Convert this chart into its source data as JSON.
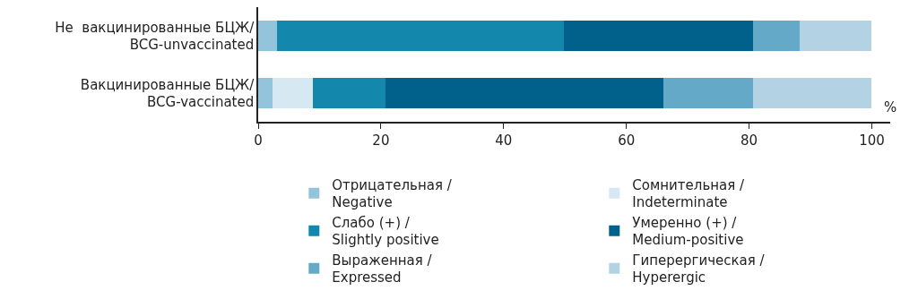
{
  "chart_data": {
    "type": "bar",
    "orientation": "horizontal",
    "stacked": true,
    "xlabel": "%",
    "categories": [
      "Не  вакцинированные БЦЖ/\nBCG-unvaccinated",
      "Вакцинированные БЦЖ/\nBCG-vaccinated"
    ],
    "series": [
      {
        "name": "Отрицательная /\nNegative",
        "color": "#93c4dc",
        "values": [
          3.0,
          2.3
        ]
      },
      {
        "name": "Сомнительная /\nIndeterminate",
        "color": "#d6e8f1",
        "values": [
          0,
          6.6
        ]
      },
      {
        "name": "Слабо (+) /\nSlightly positive",
        "color": "#1487ac",
        "values": [
          46.8,
          11.8
        ]
      },
      {
        "name": "Умеренно (+) /\nMedium-positive",
        "color": "#02618a",
        "values": [
          30.8,
          45.3
        ]
      },
      {
        "name": "Выраженная /\nExpressed",
        "color": "#64a9c8",
        "values": [
          7.7,
          14.7
        ]
      },
      {
        "name": "Гиперергическая /\nHyperergic",
        "color": "#b3d3e4",
        "values": [
          11.7,
          19.3
        ]
      }
    ],
    "xlim": [
      0,
      103
    ],
    "xticks": [
      0,
      20,
      40,
      60,
      80,
      100
    ],
    "grid": false,
    "legend": "bottom"
  }
}
